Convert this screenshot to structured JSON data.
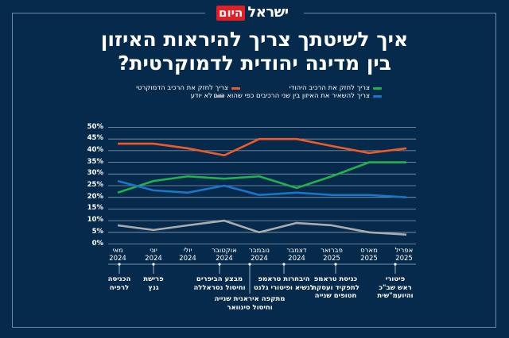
{
  "brand": {
    "name_main": "ישראל",
    "name_badge": "היום",
    "badge_color": "#e31e24"
  },
  "title_lines": [
    "איך לשיטתך צריך להיראות האיזון",
    "בין מדינה יהודית לדמוקרטית?"
  ],
  "colors": {
    "background": "#052a4b",
    "grid": "#8a9db3"
  },
  "chart_data": {
    "type": "line",
    "title": "איך לשיטתך צריך להיראות האיזון בין מדינה יהודית לדמוקרטית?",
    "xlabel": "",
    "ylabel": "",
    "ylim": [
      0,
      50
    ],
    "y_ticks": [
      "50%",
      "45%",
      "40%",
      "35%",
      "30%",
      "25%",
      "20%",
      "15%",
      "10%",
      "5%",
      "0%"
    ],
    "y_tick_values": [
      50,
      45,
      40,
      35,
      30,
      25,
      20,
      15,
      10,
      5,
      0
    ],
    "grid": true,
    "legend_position": "top",
    "categories": [
      {
        "month": "מאי",
        "year": "2024"
      },
      {
        "month": "יוני",
        "year": "2024"
      },
      {
        "month": "יולי",
        "year": "2024"
      },
      {
        "month": "אוקטובר",
        "year": "2024"
      },
      {
        "month": "נובמבר",
        "year": "2024"
      },
      {
        "month": "דצמבר",
        "year": "2024"
      },
      {
        "month": "פברואר",
        "year": "2025"
      },
      {
        "month": "מארס",
        "year": "2025"
      },
      {
        "month": "אפריל",
        "year": "2025"
      }
    ],
    "series": [
      {
        "name": "צריך לחזק את הרכיב הדמוקרטי",
        "color": "#f05a28",
        "values": [
          43,
          43,
          41,
          38,
          45,
          45,
          42,
          39,
          41
        ]
      },
      {
        "name": "צריך לחזק את הרכיב היהודי",
        "color": "#22b24c",
        "values": [
          22,
          27,
          29,
          28,
          29,
          24,
          29,
          35,
          35
        ]
      },
      {
        "name": "צריך להשאיר את האיזון בין שני הרכיבים כפי שהוא כיום",
        "color": "#1b75c9",
        "values": [
          27,
          23,
          22,
          25,
          21,
          22,
          21,
          21,
          20
        ]
      },
      {
        "name": "לא יודע",
        "color": "#a9abae",
        "values": [
          8,
          6,
          8,
          10,
          5,
          9,
          8,
          5,
          4
        ]
      }
    ],
    "annotations": [
      {
        "lines": [
          "הכניסה",
          "לרפיח"
        ],
        "row": 1
      },
      {
        "lines": [
          "פרישת",
          "גנץ"
        ],
        "row": 1
      },
      {
        "lines": [
          "מבצע הביפרים",
          "וחיסול נסראללה"
        ],
        "row": 1
      },
      {
        "lines": [
          "מתקפה איראנית שנייה",
          "וחיסול סינוואר"
        ],
        "row": 2
      },
      {
        "lines": [
          "היבחרות טראמפ",
          "לנשיא ופיטורי גלנט"
        ],
        "row": 1
      },
      {
        "lines": [
          "כניסת טראמפ",
          "לתפקיד ועסקת",
          "חטופים שנייה"
        ],
        "row": 1
      },
      {
        "lines": [
          "פיטורי",
          "ראש שב\"כ",
          "והיועמ\"שית"
        ],
        "row": 1
      }
    ]
  }
}
